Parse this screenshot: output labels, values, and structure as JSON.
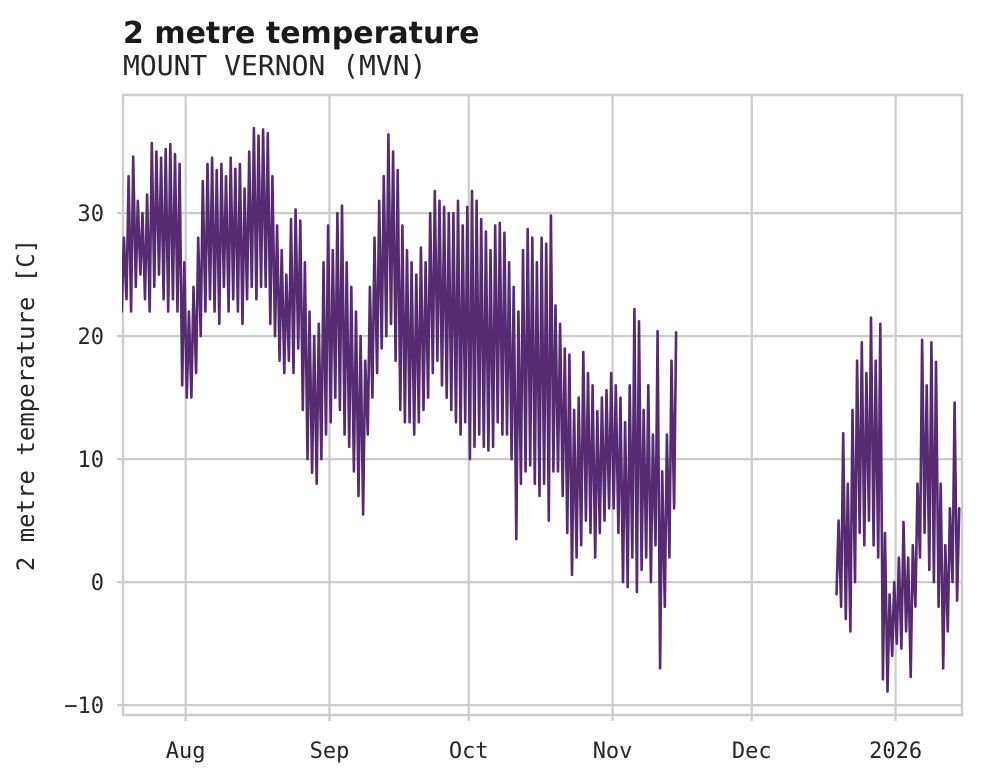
{
  "chart_data": {
    "type": "line",
    "title": "2 metre temperature",
    "subtitle": "MOUNT VERNON (MVN)",
    "ylabel": "2 metre temperature [C]",
    "colors": {
      "line": "#562b71",
      "grid": "#cccccc",
      "frame": "#cccccc",
      "text": "#262626",
      "title_text": "#1a1a1a",
      "background": "#ffffff"
    },
    "grid": true,
    "legend": null,
    "ylim": [
      -10.8,
      39.6
    ],
    "yticks": [
      {
        "value": 30,
        "label": "30"
      },
      {
        "value": 20,
        "label": "20"
      },
      {
        "value": 10,
        "label": "10"
      },
      {
        "value": 0,
        "label": "0"
      },
      {
        "value": -10,
        "label": "−10"
      }
    ],
    "x_unit": "days",
    "xlim_days": [
      0.5,
      181.3
    ],
    "xticks": [
      {
        "day": 14,
        "label": "Aug"
      },
      {
        "day": 45,
        "label": "Sep"
      },
      {
        "day": 75,
        "label": "Oct"
      },
      {
        "day": 106,
        "label": "Nov"
      },
      {
        "day": 136,
        "label": "Dec"
      },
      {
        "day": 167,
        "label": "2026"
      }
    ],
    "series": [
      {
        "name": "2 metre temperature",
        "unit": "C",
        "sampling": "per-day [min,max] read from the dense hourly trace; rendered as two samples per day (min then max)",
        "segments": [
          {
            "start_day": 0,
            "daily_min_max": [
              [
                22,
                28
              ],
              [
                23,
                33
              ],
              [
                22,
                34.6
              ],
              [
                24,
                31
              ],
              [
                25,
                30
              ],
              [
                23,
                31.5
              ],
              [
                22,
                35.7
              ],
              [
                24,
                35
              ],
              [
                25,
                34.5
              ],
              [
                23,
                35.2
              ],
              [
                22,
                35.6
              ],
              [
                23,
                34.8
              ],
              [
                22,
                34
              ],
              [
                16,
                26
              ],
              [
                15,
                22
              ],
              [
                15,
                24
              ],
              [
                17,
                28
              ],
              [
                20,
                32.6
              ],
              [
                22,
                34
              ],
              [
                23,
                34.5
              ],
              [
                22,
                33.5
              ],
              [
                21,
                34
              ],
              [
                24,
                33
              ],
              [
                22,
                34.5
              ],
              [
                23,
                33.6
              ],
              [
                22,
                34
              ],
              [
                21,
                32
              ],
              [
                23,
                35
              ],
              [
                24,
                36.9
              ],
              [
                23,
                36.3
              ],
              [
                24,
                36.8
              ],
              [
                24,
                36.5
              ],
              [
                21,
                33
              ],
              [
                20,
                29
              ],
              [
                18,
                27
              ],
              [
                17,
                25
              ],
              [
                18,
                29.5
              ],
              [
                17,
                30.3
              ],
              [
                19,
                29.4
              ],
              [
                14,
                26
              ],
              [
                10,
                22
              ],
              [
                8.9,
                20
              ],
              [
                8,
                21
              ],
              [
                10,
                26
              ],
              [
                12,
                29
              ],
              [
                13,
                27
              ],
              [
                15,
                30
              ],
              [
                14,
                30.6
              ],
              [
                12,
                26
              ],
              [
                11,
                24
              ],
              [
                9,
                22
              ],
              [
                7,
                20
              ],
              [
                5.5,
                18
              ],
              [
                12,
                24
              ],
              [
                15,
                28
              ],
              [
                17,
                31
              ],
              [
                19,
                33
              ],
              [
                20,
                36.4
              ],
              [
                21,
                35
              ],
              [
                18,
                33.5
              ],
              [
                14,
                29
              ],
              [
                13,
                27
              ],
              [
                13,
                26
              ],
              [
                12,
                25
              ],
              [
                13,
                27.2
              ],
              [
                14,
                26
              ],
              [
                15,
                30
              ],
              [
                17,
                31.8
              ],
              [
                18,
                31
              ],
              [
                16,
                30.5
              ],
              [
                15,
                30
              ],
              [
                14,
                30
              ],
              [
                13,
                31
              ],
              [
                12,
                29
              ],
              [
                13,
                30.5
              ],
              [
                10,
                31.8
              ],
              [
                11,
                31
              ],
              [
                12,
                29.5
              ],
              [
                11,
                28.5
              ],
              [
                10.7,
                27
              ],
              [
                11,
                29
              ],
              [
                13,
                29.2
              ],
              [
                12,
                28.4
              ],
              [
                12,
                26
              ],
              [
                10,
                24
              ],
              [
                3.5,
                22
              ],
              [
                8,
                27
              ],
              [
                9,
                28.7
              ],
              [
                9.5,
                28
              ],
              [
                8,
                26
              ],
              [
                7,
                28
              ],
              [
                8,
                27.5
              ],
              [
                5,
                29.8
              ],
              [
                9,
                22.5
              ],
              [
                9,
                21
              ],
              [
                7,
                19
              ],
              [
                4,
                18.5
              ],
              [
                0.6,
                14
              ],
              [
                2,
                15
              ],
              [
                3,
                18.7
              ],
              [
                5,
                17
              ],
              [
                4,
                16
              ],
              [
                2,
                13.9
              ],
              [
                4,
                15
              ],
              [
                5,
                15.6
              ],
              [
                6,
                17
              ],
              [
                6,
                16
              ],
              [
                4,
                15
              ],
              [
                0,
                13
              ],
              [
                -0.4,
                16
              ],
              [
                2,
                22.2
              ],
              [
                -0.8,
                21.2
              ],
              [
                1,
                14
              ],
              [
                2,
                16
              ],
              [
                0,
                12
              ],
              [
                3,
                20.4
              ],
              [
                -7,
                9
              ],
              [
                -2,
                12
              ],
              [
                2,
                18
              ],
              [
                6,
                20.3
              ]
            ]
          },
          {
            "start_day": 154,
            "daily_min_max": [
              [
                -1,
                5
              ],
              [
                -2,
                12.1
              ],
              [
                -3,
                8
              ],
              [
                -4,
                14
              ],
              [
                0,
                18
              ],
              [
                4,
                19.5
              ],
              [
                3,
                17
              ],
              [
                5,
                21.5
              ],
              [
                3,
                18
              ],
              [
                2,
                21
              ],
              [
                -7.9,
                4
              ],
              [
                -8.9,
                -1
              ],
              [
                -6,
                0
              ],
              [
                -5,
                2
              ],
              [
                -5.4,
                4.9
              ],
              [
                -4,
                2
              ],
              [
                -7.7,
                3
              ],
              [
                -2,
                8
              ],
              [
                2,
                19.7
              ],
              [
                4,
                16
              ],
              [
                1,
                19.5
              ],
              [
                0,
                17.9
              ],
              [
                -2,
                8
              ],
              [
                -7,
                3
              ],
              [
                -4,
                6
              ],
              [
                0,
                14.6
              ],
              [
                -1.5,
                6
              ]
            ]
          }
        ]
      }
    ]
  }
}
